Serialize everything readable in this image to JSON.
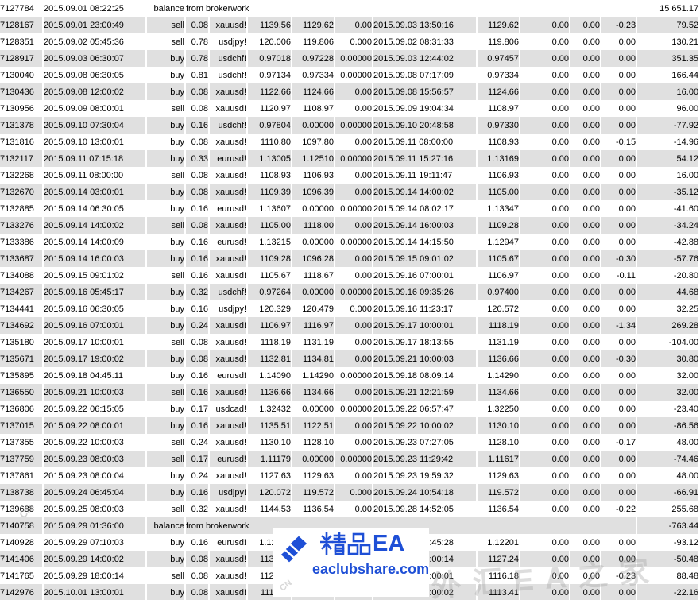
{
  "watermark": {
    "brand": "精品EA",
    "brand_ea": "EA",
    "site": "eaclubshare.com",
    "ghost_text": "外汇EA之家",
    "ghost_small": "CN",
    "brand_color": "#1e4fd6"
  },
  "history": {
    "stripe_color": "#e0e0e0",
    "rows": [
      {
        "ticket": "7127784",
        "open_time": "2015.09.01 08:22:25",
        "type": "balance",
        "note": "from brokerwork",
        "profit": "15 651.17"
      },
      {
        "ticket": "7128167",
        "open_time": "2015.09.01 23:00:49",
        "type": "sell",
        "size": "0.08",
        "symbol": "xauusd!",
        "open_price": "1139.56",
        "sl": "1129.62",
        "tp": "0.00",
        "close_time": "2015.09.03 13:50:16",
        "close_price": "1129.62",
        "commission": "0.00",
        "taxes": "0.00",
        "swap": "-0.23",
        "profit": "79.52"
      },
      {
        "ticket": "7128351",
        "open_time": "2015.09.02 05:45:36",
        "type": "sell",
        "size": "0.78",
        "symbol": "usdjpy!",
        "open_price": "120.006",
        "sl": "119.806",
        "tp": "0.000",
        "close_time": "2015.09.02 08:31:33",
        "close_price": "119.806",
        "commission": "0.00",
        "taxes": "0.00",
        "swap": "0.00",
        "profit": "130.21"
      },
      {
        "ticket": "7128917",
        "open_time": "2015.09.03 06:30:07",
        "type": "buy",
        "size": "0.78",
        "symbol": "usdchf!",
        "open_price": "0.97018",
        "sl": "0.97228",
        "tp": "0.00000",
        "close_time": "2015.09.03 12:44:02",
        "close_price": "0.97457",
        "commission": "0.00",
        "taxes": "0.00",
        "swap": "0.00",
        "profit": "351.35"
      },
      {
        "ticket": "7130040",
        "open_time": "2015.09.08 06:30:05",
        "type": "buy",
        "size": "0.81",
        "symbol": "usdchf!",
        "open_price": "0.97134",
        "sl": "0.97334",
        "tp": "0.00000",
        "close_time": "2015.09.08 07:17:09",
        "close_price": "0.97334",
        "commission": "0.00",
        "taxes": "0.00",
        "swap": "0.00",
        "profit": "166.44"
      },
      {
        "ticket": "7130436",
        "open_time": "2015.09.08 12:00:02",
        "type": "buy",
        "size": "0.08",
        "symbol": "xauusd!",
        "open_price": "1122.66",
        "sl": "1124.66",
        "tp": "0.00",
        "close_time": "2015.09.08 15:56:57",
        "close_price": "1124.66",
        "commission": "0.00",
        "taxes": "0.00",
        "swap": "0.00",
        "profit": "16.00"
      },
      {
        "ticket": "7130956",
        "open_time": "2015.09.09 08:00:01",
        "type": "sell",
        "size": "0.08",
        "symbol": "xauusd!",
        "open_price": "1120.97",
        "sl": "1108.97",
        "tp": "0.00",
        "close_time": "2015.09.09 19:04:34",
        "close_price": "1108.97",
        "commission": "0.00",
        "taxes": "0.00",
        "swap": "0.00",
        "profit": "96.00"
      },
      {
        "ticket": "7131378",
        "open_time": "2015.09.10 07:30:04",
        "type": "buy",
        "size": "0.16",
        "symbol": "usdchf!",
        "open_price": "0.97804",
        "sl": "0.00000",
        "tp": "0.00000",
        "close_time": "2015.09.10 20:48:58",
        "close_price": "0.97330",
        "commission": "0.00",
        "taxes": "0.00",
        "swap": "0.00",
        "profit": "-77.92"
      },
      {
        "ticket": "7131816",
        "open_time": "2015.09.10 13:00:01",
        "type": "buy",
        "size": "0.08",
        "symbol": "xauusd!",
        "open_price": "1110.80",
        "sl": "1097.80",
        "tp": "0.00",
        "close_time": "2015.09.11 08:00:00",
        "close_price": "1108.93",
        "commission": "0.00",
        "taxes": "0.00",
        "swap": "-0.15",
        "profit": "-14.96"
      },
      {
        "ticket": "7132117",
        "open_time": "2015.09.11 07:15:18",
        "type": "buy",
        "size": "0.33",
        "symbol": "eurusd!",
        "open_price": "1.13005",
        "sl": "1.12510",
        "tp": "0.00000",
        "close_time": "2015.09.11 15:27:16",
        "close_price": "1.13169",
        "commission": "0.00",
        "taxes": "0.00",
        "swap": "0.00",
        "profit": "54.12"
      },
      {
        "ticket": "7132268",
        "open_time": "2015.09.11 08:00:00",
        "type": "sell",
        "size": "0.08",
        "symbol": "xauusd!",
        "open_price": "1108.93",
        "sl": "1106.93",
        "tp": "0.00",
        "close_time": "2015.09.11 19:11:47",
        "close_price": "1106.93",
        "commission": "0.00",
        "taxes": "0.00",
        "swap": "0.00",
        "profit": "16.00"
      },
      {
        "ticket": "7132670",
        "open_time": "2015.09.14 03:00:01",
        "type": "buy",
        "size": "0.08",
        "symbol": "xauusd!",
        "open_price": "1109.39",
        "sl": "1096.39",
        "tp": "0.00",
        "close_time": "2015.09.14 14:00:02",
        "close_price": "1105.00",
        "commission": "0.00",
        "taxes": "0.00",
        "swap": "0.00",
        "profit": "-35.12"
      },
      {
        "ticket": "7132885",
        "open_time": "2015.09.14 06:30:05",
        "type": "buy",
        "size": "0.16",
        "symbol": "eurusd!",
        "open_price": "1.13607",
        "sl": "0.00000",
        "tp": "0.00000",
        "close_time": "2015.09.14 08:02:17",
        "close_price": "1.13347",
        "commission": "0.00",
        "taxes": "0.00",
        "swap": "0.00",
        "profit": "-41.60"
      },
      {
        "ticket": "7133276",
        "open_time": "2015.09.14 14:00:02",
        "type": "sell",
        "size": "0.08",
        "symbol": "xauusd!",
        "open_price": "1105.00",
        "sl": "1118.00",
        "tp": "0.00",
        "close_time": "2015.09.14 16:00:03",
        "close_price": "1109.28",
        "commission": "0.00",
        "taxes": "0.00",
        "swap": "0.00",
        "profit": "-34.24"
      },
      {
        "ticket": "7133386",
        "open_time": "2015.09.14 14:00:09",
        "type": "buy",
        "size": "0.16",
        "symbol": "eurusd!",
        "open_price": "1.13215",
        "sl": "0.00000",
        "tp": "0.00000",
        "close_time": "2015.09.14 14:15:50",
        "close_price": "1.12947",
        "commission": "0.00",
        "taxes": "0.00",
        "swap": "0.00",
        "profit": "-42.88"
      },
      {
        "ticket": "7133687",
        "open_time": "2015.09.14 16:00:03",
        "type": "buy",
        "size": "0.16",
        "symbol": "xauusd!",
        "open_price": "1109.28",
        "sl": "1096.28",
        "tp": "0.00",
        "close_time": "2015.09.15 09:01:02",
        "close_price": "1105.67",
        "commission": "0.00",
        "taxes": "0.00",
        "swap": "-0.30",
        "profit": "-57.76"
      },
      {
        "ticket": "7134088",
        "open_time": "2015.09.15 09:01:02",
        "type": "sell",
        "size": "0.16",
        "symbol": "xauusd!",
        "open_price": "1105.67",
        "sl": "1118.67",
        "tp": "0.00",
        "close_time": "2015.09.16 07:00:01",
        "close_price": "1106.97",
        "commission": "0.00",
        "taxes": "0.00",
        "swap": "-0.11",
        "profit": "-20.80"
      },
      {
        "ticket": "7134267",
        "open_time": "2015.09.16 05:45:17",
        "type": "buy",
        "size": "0.32",
        "symbol": "usdchf!",
        "open_price": "0.97264",
        "sl": "0.00000",
        "tp": "0.00000",
        "close_time": "2015.09.16 09:35:26",
        "close_price": "0.97400",
        "commission": "0.00",
        "taxes": "0.00",
        "swap": "0.00",
        "profit": "44.68"
      },
      {
        "ticket": "7134441",
        "open_time": "2015.09.16 06:30:05",
        "type": "buy",
        "size": "0.16",
        "symbol": "usdjpy!",
        "open_price": "120.329",
        "sl": "120.479",
        "tp": "0.000",
        "close_time": "2015.09.16 11:23:17",
        "close_price": "120.572",
        "commission": "0.00",
        "taxes": "0.00",
        "swap": "0.00",
        "profit": "32.25"
      },
      {
        "ticket": "7134692",
        "open_time": "2015.09.16 07:00:01",
        "type": "buy",
        "size": "0.24",
        "symbol": "xauusd!",
        "open_price": "1106.97",
        "sl": "1116.97",
        "tp": "0.00",
        "close_time": "2015.09.17 10:00:01",
        "close_price": "1118.19",
        "commission": "0.00",
        "taxes": "0.00",
        "swap": "-1.34",
        "profit": "269.28"
      },
      {
        "ticket": "7135180",
        "open_time": "2015.09.17 10:00:01",
        "type": "sell",
        "size": "0.08",
        "symbol": "xauusd!",
        "open_price": "1118.19",
        "sl": "1131.19",
        "tp": "0.00",
        "close_time": "2015.09.17 18:13:55",
        "close_price": "1131.19",
        "commission": "0.00",
        "taxes": "0.00",
        "swap": "0.00",
        "profit": "-104.00"
      },
      {
        "ticket": "7135671",
        "open_time": "2015.09.17 19:00:02",
        "type": "buy",
        "size": "0.08",
        "symbol": "xauusd!",
        "open_price": "1132.81",
        "sl": "1134.81",
        "tp": "0.00",
        "close_time": "2015.09.21 10:00:03",
        "close_price": "1136.66",
        "commission": "0.00",
        "taxes": "0.00",
        "swap": "-0.30",
        "profit": "30.80"
      },
      {
        "ticket": "7135895",
        "open_time": "2015.09.18 04:45:11",
        "type": "buy",
        "size": "0.16",
        "symbol": "eurusd!",
        "open_price": "1.14090",
        "sl": "1.14290",
        "tp": "0.00000",
        "close_time": "2015.09.18 08:09:14",
        "close_price": "1.14290",
        "commission": "0.00",
        "taxes": "0.00",
        "swap": "0.00",
        "profit": "32.00"
      },
      {
        "ticket": "7136550",
        "open_time": "2015.09.21 10:00:03",
        "type": "sell",
        "size": "0.16",
        "symbol": "xauusd!",
        "open_price": "1136.66",
        "sl": "1134.66",
        "tp": "0.00",
        "close_time": "2015.09.21 12:21:59",
        "close_price": "1134.66",
        "commission": "0.00",
        "taxes": "0.00",
        "swap": "0.00",
        "profit": "32.00"
      },
      {
        "ticket": "7136806",
        "open_time": "2015.09.22 06:15:05",
        "type": "buy",
        "size": "0.17",
        "symbol": "usdcad!",
        "open_price": "1.32432",
        "sl": "0.00000",
        "tp": "0.00000",
        "close_time": "2015.09.22 06:57:47",
        "close_price": "1.32250",
        "commission": "0.00",
        "taxes": "0.00",
        "swap": "0.00",
        "profit": "-23.40"
      },
      {
        "ticket": "7137015",
        "open_time": "2015.09.22 08:00:01",
        "type": "buy",
        "size": "0.16",
        "symbol": "xauusd!",
        "open_price": "1135.51",
        "sl": "1122.51",
        "tp": "0.00",
        "close_time": "2015.09.22 10:00:02",
        "close_price": "1130.10",
        "commission": "0.00",
        "taxes": "0.00",
        "swap": "0.00",
        "profit": "-86.56"
      },
      {
        "ticket": "7137355",
        "open_time": "2015.09.22 10:00:03",
        "type": "sell",
        "size": "0.24",
        "symbol": "xauusd!",
        "open_price": "1130.10",
        "sl": "1128.10",
        "tp": "0.00",
        "close_time": "2015.09.23 07:27:05",
        "close_price": "1128.10",
        "commission": "0.00",
        "taxes": "0.00",
        "swap": "-0.17",
        "profit": "48.00"
      },
      {
        "ticket": "7137759",
        "open_time": "2015.09.23 08:00:03",
        "type": "sell",
        "size": "0.17",
        "symbol": "eurusd!",
        "open_price": "1.11179",
        "sl": "0.00000",
        "tp": "0.00000",
        "close_time": "2015.09.23 11:29:42",
        "close_price": "1.11617",
        "commission": "0.00",
        "taxes": "0.00",
        "swap": "0.00",
        "profit": "-74.46"
      },
      {
        "ticket": "7137861",
        "open_time": "2015.09.23 08:00:04",
        "type": "buy",
        "size": "0.24",
        "symbol": "xauusd!",
        "open_price": "1127.63",
        "sl": "1129.63",
        "tp": "0.00",
        "close_time": "2015.09.23 19:59:32",
        "close_price": "1129.63",
        "commission": "0.00",
        "taxes": "0.00",
        "swap": "0.00",
        "profit": "48.00"
      },
      {
        "ticket": "7138738",
        "open_time": "2015.09.24 06:45:04",
        "type": "buy",
        "size": "0.16",
        "symbol": "usdjpy!",
        "open_price": "120.072",
        "sl": "119.572",
        "tp": "0.000",
        "close_time": "2015.09.24 10:54:18",
        "close_price": "119.572",
        "commission": "0.00",
        "taxes": "0.00",
        "swap": "0.00",
        "profit": "-66.91"
      },
      {
        "ticket": "7139688",
        "open_time": "2015.09.25 08:00:03",
        "type": "sell",
        "size": "0.32",
        "symbol": "xauusd!",
        "open_price": "1144.53",
        "sl": "1136.54",
        "tp": "0.00",
        "close_time": "2015.09.28 14:52:05",
        "close_price": "1136.54",
        "commission": "0.00",
        "taxes": "0.00",
        "swap": "-0.22",
        "profit": "255.68"
      },
      {
        "ticket": "7140758",
        "open_time": "2015.09.29 01:36:00",
        "type": "balance",
        "note": "from brokerwork",
        "profit": "-763.44"
      },
      {
        "ticket": "7140928",
        "open_time": "2015.09.29 07:10:03",
        "type": "buy",
        "size": "0.16",
        "symbol": "eurusd!",
        "open_price": "1.12783",
        "sl": "",
        "tp": "",
        "close_time": "2015.09.29 08:45:28",
        "close_price": "1.12201",
        "commission": "0.00",
        "taxes": "0.00",
        "swap": "0.00",
        "profit": "-93.12"
      },
      {
        "ticket": "7141406",
        "open_time": "2015.09.29 14:00:02",
        "type": "buy",
        "size": "0.08",
        "symbol": "xauusd!",
        "open_price": "1133.55",
        "sl": "",
        "tp": "",
        "close_time": "2015.09.29 18:00:14",
        "close_price": "1127.24",
        "commission": "0.00",
        "taxes": "0.00",
        "swap": "0.00",
        "profit": "-50.48"
      },
      {
        "ticket": "7141765",
        "open_time": "2015.09.29 18:00:14",
        "type": "sell",
        "size": "0.08",
        "symbol": "xauusd!",
        "open_price": "1127.24",
        "sl": "",
        "tp": "",
        "close_time": "2015.10.01 13:00:01",
        "close_price": "1116.18",
        "commission": "0.00",
        "taxes": "0.00",
        "swap": "-0.23",
        "profit": "88.48"
      },
      {
        "ticket": "7142976",
        "open_time": "2015.10.01 13:00:01",
        "type": "buy",
        "size": "0.08",
        "symbol": "xauusd!",
        "open_price": "1116.18",
        "sl": "",
        "tp": "",
        "close_time": "2015.10.01 21:00:02",
        "close_price": "1113.41",
        "commission": "0.00",
        "taxes": "0.00",
        "swap": "0.00",
        "profit": "-22.16"
      }
    ]
  }
}
